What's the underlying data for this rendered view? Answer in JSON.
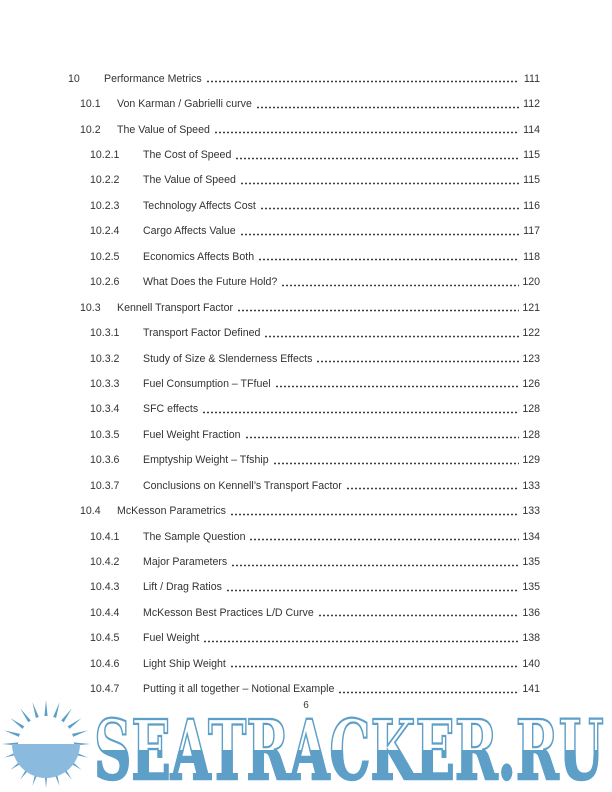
{
  "document": {
    "footer_page_number": "6"
  },
  "toc": {
    "entries": [
      {
        "level": 1,
        "num": "10",
        "title": "Performance Metrics",
        "page": "111"
      },
      {
        "level": 2,
        "num": "10.1",
        "title": "Von Karman / Gabrielli curve",
        "page": "112"
      },
      {
        "level": 2,
        "num": "10.2",
        "title": "The Value of Speed",
        "page": "114"
      },
      {
        "level": 3,
        "num": "10.2.1",
        "title": "The Cost of Speed",
        "page": "115"
      },
      {
        "level": 3,
        "num": "10.2.2",
        "title": "The Value of Speed",
        "page": "115"
      },
      {
        "level": 3,
        "num": "10.2.3",
        "title": "Technology Affects Cost",
        "page": "116"
      },
      {
        "level": 3,
        "num": "10.2.4",
        "title": "Cargo Affects Value",
        "page": "117"
      },
      {
        "level": 3,
        "num": "10.2.5",
        "title": "Economics Affects Both",
        "page": "118"
      },
      {
        "level": 3,
        "num": "10.2.6",
        "title": "What Does the Future Hold?",
        "page": "120"
      },
      {
        "level": 2,
        "num": "10.3",
        "title": "Kennell Transport Factor",
        "page": "121"
      },
      {
        "level": 3,
        "num": "10.3.1",
        "title": "Transport Factor Defined",
        "page": "122"
      },
      {
        "level": 3,
        "num": "10.3.2",
        "title": "Study of Size & Slenderness Effects",
        "page": "123"
      },
      {
        "level": 3,
        "num": "10.3.3",
        "title": "Fuel Consumption – TFfuel",
        "page": "126"
      },
      {
        "level": 3,
        "num": "10.3.4",
        "title": "SFC effects",
        "page": "128"
      },
      {
        "level": 3,
        "num": "10.3.5",
        "title": "Fuel Weight Fraction",
        "page": "128"
      },
      {
        "level": 3,
        "num": "10.3.6",
        "title": "Emptyship Weight – Tfship",
        "page": "129"
      },
      {
        "level": 3,
        "num": "10.3.7",
        "title": "Conclusions on Kennell’s Transport Factor",
        "page": "133"
      },
      {
        "level": 2,
        "num": "10.4",
        "title": "McKesson Parametrics",
        "page": "133"
      },
      {
        "level": 3,
        "num": "10.4.1",
        "title": "The Sample Question",
        "page": "134"
      },
      {
        "level": 3,
        "num": "10.4.2",
        "title": "Major Parameters",
        "page": "135"
      },
      {
        "level": 3,
        "num": "10.4.3",
        "title": "Lift / Drag Ratios",
        "page": "135"
      },
      {
        "level": 3,
        "num": "10.4.4",
        "title": "McKesson Best Practices L/D Curve",
        "page": "136"
      },
      {
        "level": 3,
        "num": "10.4.5",
        "title": "Fuel Weight",
        "page": "138"
      },
      {
        "level": 3,
        "num": "10.4.6",
        "title": "Light Ship Weight",
        "page": "140"
      },
      {
        "level": 3,
        "num": "10.4.7",
        "title": "Putting it all together – Notional Example",
        "page": "141"
      }
    ]
  },
  "watermark": {
    "text": "SEATRACKER.RU",
    "icon": "sun-over-sea-icon",
    "color": "#5e9fc8",
    "sea_color": "#8abade",
    "sun_color": "#ffffff"
  }
}
